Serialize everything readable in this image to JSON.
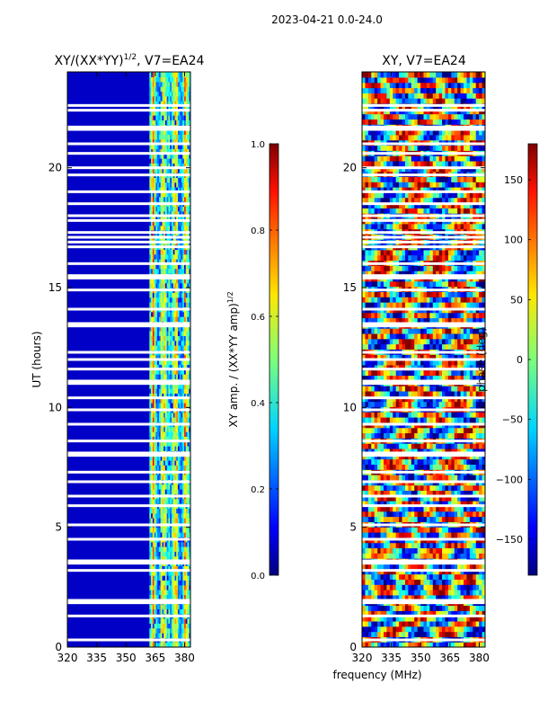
{
  "suptitle": "2023-04-21 0.0-24.0",
  "chart_data": [
    {
      "type": "heatmap",
      "title": "XY/(XX*YY)^1/2, V7=EA24",
      "title_main": "XY/(XX*YY)",
      "title_sup": "1/2",
      "title_tail": ", V7=EA24",
      "xlabel": "",
      "ylabel": "UT (hours)",
      "xlim": [
        320,
        383
      ],
      "ylim": [
        0,
        24
      ],
      "xticks": [
        320,
        335,
        350,
        365,
        380
      ],
      "yticks": [
        0,
        5,
        10,
        15,
        20
      ],
      "colorbar": {
        "label": "XY amp. / (XX*YY amp)^1/2",
        "label_main": "XY amp. / (XX*YY amp)",
        "label_sup": "1/2",
        "range": [
          0.0,
          1.0
        ],
        "ticks": [
          "0.0",
          "0.2",
          "0.4",
          "0.6",
          "0.8",
          "1.0"
        ],
        "colormap": "jet"
      },
      "description_values": {
        "low_band_level": 0.05,
        "high_band_start_mhz": 362,
        "high_band_level_range": [
          0.3,
          0.6
        ]
      }
    },
    {
      "type": "heatmap",
      "title": "XY, V7=EA24",
      "xlabel": "frequency (MHz)",
      "ylabel": "",
      "xlim": [
        320,
        383
      ],
      "ylim": [
        0,
        24
      ],
      "xticks": [
        320,
        335,
        350,
        365,
        380
      ],
      "yticks": [
        0,
        5,
        10,
        15,
        20
      ],
      "colorbar": {
        "label": "phase (deg)",
        "range": [
          -180,
          180
        ],
        "ticks": [
          "150",
          "100",
          "50",
          "0",
          "−50",
          "−100",
          "−150"
        ],
        "tick_values": [
          150,
          100,
          50,
          0,
          -50,
          -100,
          -150
        ],
        "colormap": "jet"
      }
    }
  ],
  "gap_hours": [
    0.3,
    1.3,
    1.85,
    1.95,
    3.2,
    3.5,
    3.6,
    4.5,
    5.1,
    5.9,
    6.3,
    6.9,
    7.3,
    8.0,
    8.1,
    8.6,
    9.3,
    9.9,
    10.4,
    11.0,
    11.1,
    11.6,
    12.0,
    12.3,
    13.4,
    13.5,
    14.1,
    14.9,
    15.4,
    15.5,
    16.0,
    16.7,
    16.9,
    17.1,
    17.3,
    17.8,
    18.0,
    18.5,
    19.0,
    19.7,
    20.0,
    20.6,
    21.0,
    21.6,
    21.7,
    22.4,
    22.6
  ],
  "tick_label_fmt": "number"
}
